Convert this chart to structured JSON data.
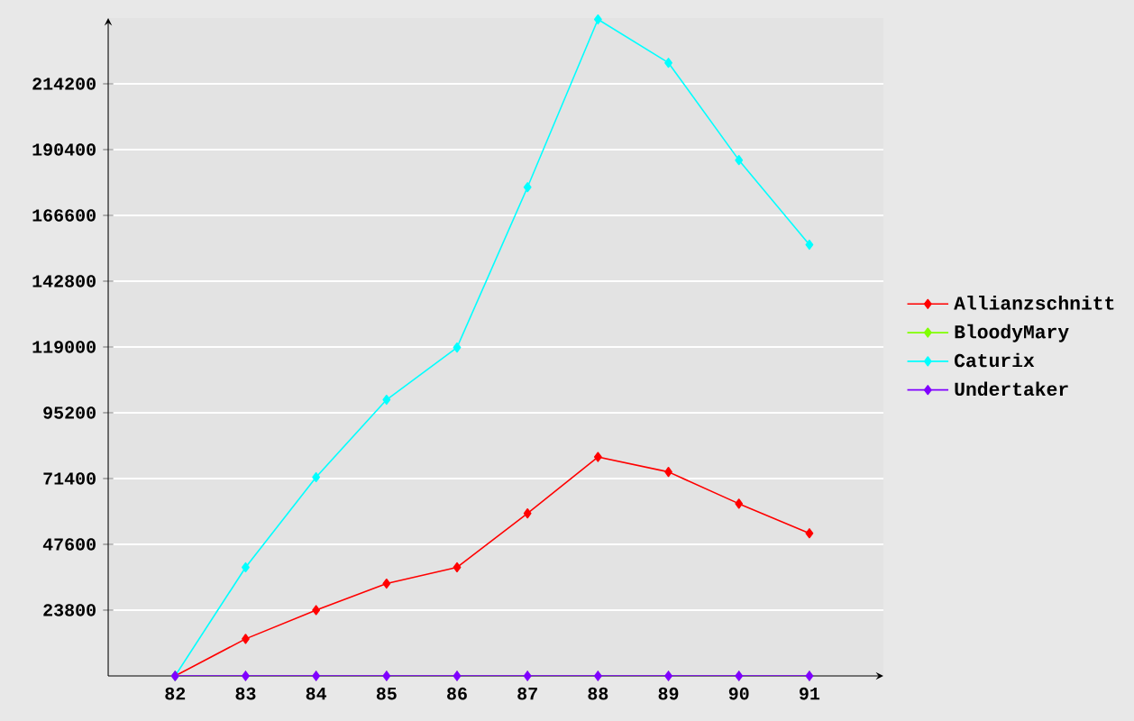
{
  "chart_data": {
    "type": "line",
    "categories": [
      "82",
      "83",
      "84",
      "85",
      "86",
      "87",
      "88",
      "89",
      "90",
      "91"
    ],
    "series": [
      {
        "name": "Allianzschnitt",
        "color": "#ff0000",
        "values": [
          0,
          13400,
          23800,
          33400,
          39300,
          58800,
          79200,
          73800,
          62300,
          51600
        ]
      },
      {
        "name": "BloodyMary",
        "color": "#80ff00",
        "values": [
          null,
          null,
          null,
          null,
          null,
          null,
          null,
          null,
          null,
          null
        ]
      },
      {
        "name": "Caturix",
        "color": "#00ffff",
        "values": [
          0,
          39300,
          71900,
          99900,
          118800,
          176800,
          237500,
          221800,
          186600,
          156000
        ]
      },
      {
        "name": "Undertaker",
        "color": "#8000ff",
        "values": [
          0,
          0,
          0,
          0,
          0,
          0,
          0,
          0,
          0,
          0
        ]
      }
    ],
    "ylim": [
      0,
      238000
    ],
    "yticks": [
      23800,
      47600,
      71400,
      95200,
      119000,
      142800,
      166600,
      190400,
      214200
    ],
    "grid": "y",
    "legend": "right",
    "marker": "diamond",
    "line_style": "solid"
  }
}
